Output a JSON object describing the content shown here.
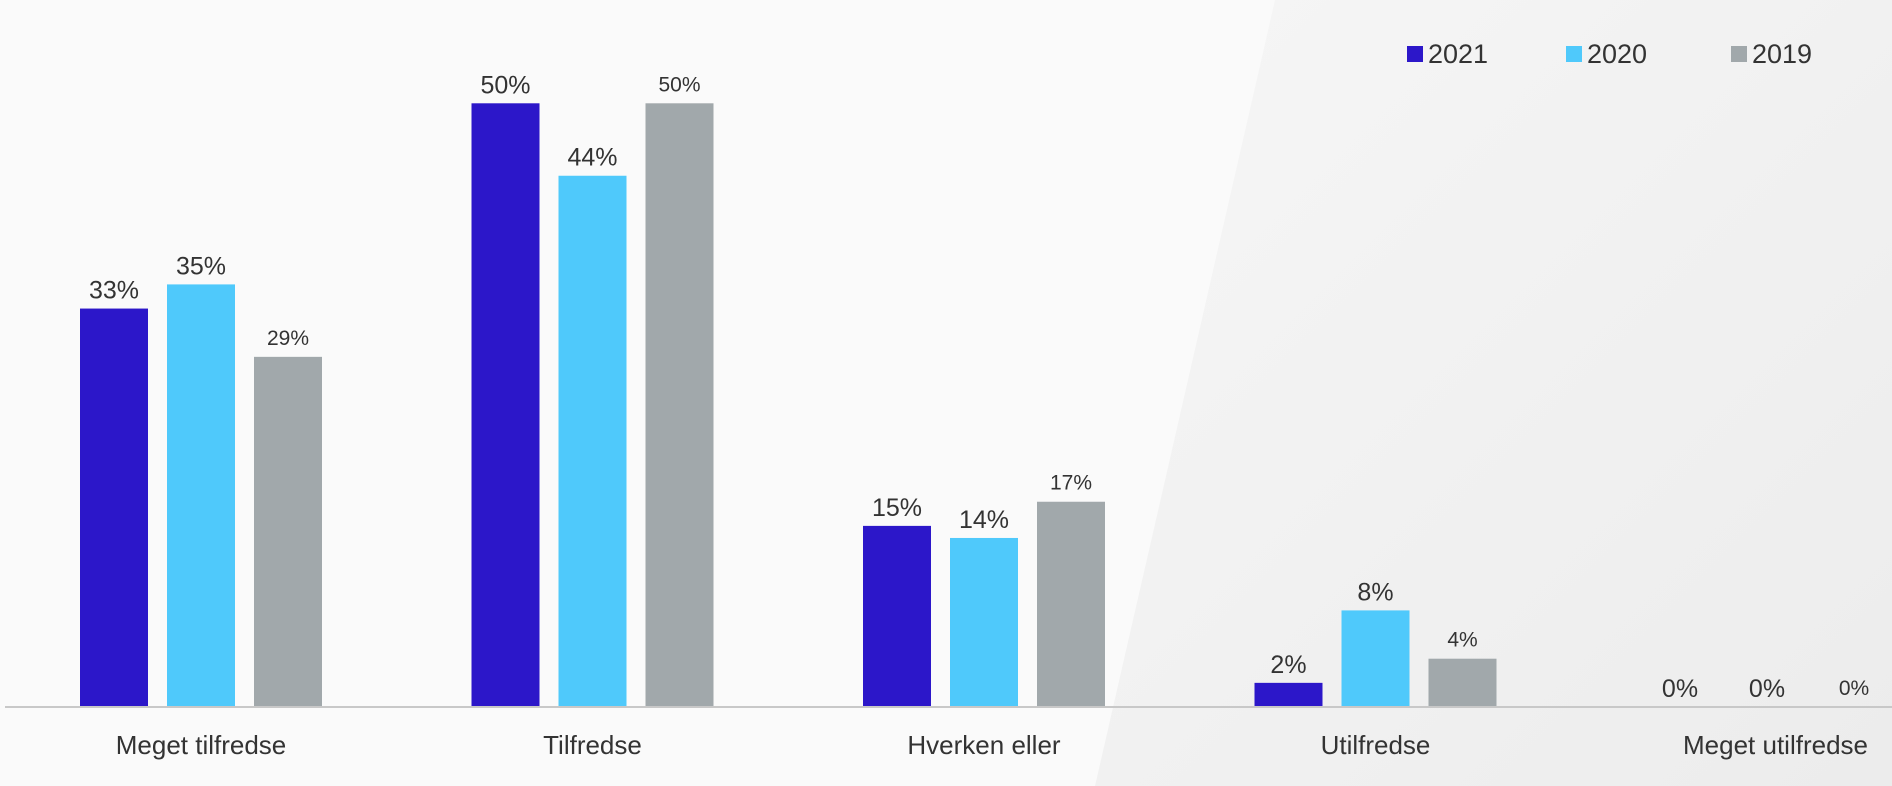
{
  "chart_data": {
    "type": "bar",
    "categories": [
      "Meget tilfredse",
      "Tilfredse",
      "Hverken eller",
      "Utilfredse",
      "Meget utilfredse"
    ],
    "series": [
      {
        "name": "2021",
        "values": [
          33,
          50,
          15,
          2,
          0
        ],
        "labels": [
          "33%",
          "50%",
          "15%",
          "2%",
          "0%"
        ],
        "color": "#2c17c9"
      },
      {
        "name": "2020",
        "values": [
          35,
          44,
          14,
          8,
          0
        ],
        "labels": [
          "35%",
          "44%",
          "14%",
          "8%",
          "0%"
        ],
        "color": "#4fc9fb"
      },
      {
        "name": "2019",
        "values": [
          29,
          50,
          17,
          4,
          0
        ],
        "labels": [
          "29%",
          "50%",
          "17%",
          "4%",
          "0%"
        ],
        "color": "#a1a8ab"
      }
    ],
    "ylim": [
      0,
      54
    ],
    "grid": false,
    "legend_position": "top-right",
    "colors": {
      "background": "#fafafa",
      "background_shade": "#efefef",
      "axis": "#c8c8c8",
      "text": "#333333"
    }
  }
}
